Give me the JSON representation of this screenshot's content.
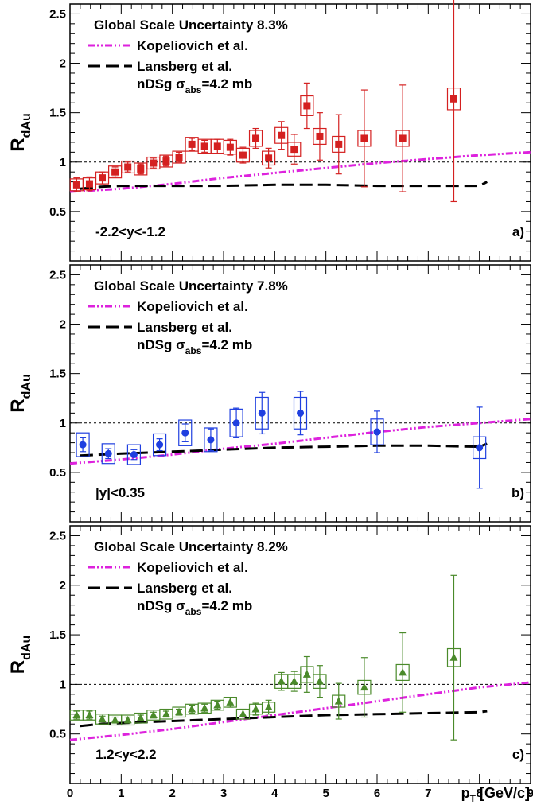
{
  "chart_data": [
    {
      "type": "scatter",
      "panel": "a)",
      "range_label": "-2.2<y<-1.2",
      "global_scale": "Global Scale Uncertainty 8.3%",
      "ylabel": "R",
      "ylabel_sub": "dAu",
      "xlim": [
        0,
        9
      ],
      "ylim": [
        0,
        2.6
      ],
      "yticks": [
        "0.5",
        "1",
        "1.5",
        "2",
        "2.5"
      ],
      "ytick_values": [
        0.5,
        1,
        1.5,
        2,
        2.5
      ],
      "reference_line": 1,
      "legend": {
        "kopeliovich": "Kopeliovich et al.",
        "lansberg": "Lansberg et al.",
        "nds_prefix": "nDSg σ",
        "nds_sub": "abs",
        "nds_suffix": "=4.2 mb"
      },
      "marker": "square",
      "marker_color": "#d42020",
      "data_points": [
        {
          "x": 0.13,
          "y": 0.77,
          "stat": 0.07,
          "sys": 0.06
        },
        {
          "x": 0.38,
          "y": 0.78,
          "stat": 0.07,
          "sys": 0.06
        },
        {
          "x": 0.63,
          "y": 0.84,
          "stat": 0.06,
          "sys": 0.06
        },
        {
          "x": 0.88,
          "y": 0.9,
          "stat": 0.05,
          "sys": 0.06
        },
        {
          "x": 1.13,
          "y": 0.95,
          "stat": 0.05,
          "sys": 0.06
        },
        {
          "x": 1.38,
          "y": 0.93,
          "stat": 0.05,
          "sys": 0.06
        },
        {
          "x": 1.63,
          "y": 0.99,
          "stat": 0.05,
          "sys": 0.06
        },
        {
          "x": 1.88,
          "y": 1.01,
          "stat": 0.05,
          "sys": 0.06
        },
        {
          "x": 2.13,
          "y": 1.05,
          "stat": 0.05,
          "sys": 0.06
        },
        {
          "x": 2.38,
          "y": 1.18,
          "stat": 0.06,
          "sys": 0.07
        },
        {
          "x": 2.63,
          "y": 1.16,
          "stat": 0.06,
          "sys": 0.07
        },
        {
          "x": 2.88,
          "y": 1.16,
          "stat": 0.07,
          "sys": 0.07
        },
        {
          "x": 3.13,
          "y": 1.15,
          "stat": 0.08,
          "sys": 0.07
        },
        {
          "x": 3.38,
          "y": 1.07,
          "stat": 0.08,
          "sys": 0.07
        },
        {
          "x": 3.63,
          "y": 1.24,
          "stat": 0.1,
          "sys": 0.08
        },
        {
          "x": 3.88,
          "y": 1.04,
          "stat": 0.1,
          "sys": 0.07
        },
        {
          "x": 4.13,
          "y": 1.27,
          "stat": 0.14,
          "sys": 0.08
        },
        {
          "x": 4.38,
          "y": 1.13,
          "stat": 0.15,
          "sys": 0.07
        },
        {
          "x": 4.63,
          "y": 1.57,
          "stat": 0.23,
          "sys": 0.1
        },
        {
          "x": 4.88,
          "y": 1.26,
          "stat": 0.24,
          "sys": 0.08
        },
        {
          "x": 5.25,
          "y": 1.18,
          "stat": 0.3,
          "sys": 0.08
        },
        {
          "x": 5.75,
          "y": 1.24,
          "stat": 0.49,
          "sys": 0.08
        },
        {
          "x": 6.5,
          "y": 1.24,
          "stat": 0.54,
          "sys": 0.08
        },
        {
          "x": 7.5,
          "y": 1.64,
          "stat": 1.04,
          "sys": 0.11
        }
      ],
      "kopeliovich_curve": [
        [
          0,
          0.7
        ],
        [
          1,
          0.73
        ],
        [
          2,
          0.78
        ],
        [
          3,
          0.84
        ],
        [
          4,
          0.89
        ],
        [
          5,
          0.94
        ],
        [
          6,
          0.99
        ],
        [
          7,
          1.03
        ],
        [
          8,
          1.07
        ],
        [
          9,
          1.1
        ]
      ],
      "lansberg_curve": [
        [
          0.2,
          0.73
        ],
        [
          0.6,
          0.75
        ],
        [
          1.0,
          0.76
        ],
        [
          2.0,
          0.76
        ],
        [
          3.0,
          0.76
        ],
        [
          4.0,
          0.77
        ],
        [
          5.0,
          0.77
        ],
        [
          6.0,
          0.76
        ],
        [
          7.0,
          0.76
        ],
        [
          8.0,
          0.76
        ],
        [
          8.15,
          0.8
        ]
      ]
    },
    {
      "type": "scatter",
      "panel": "b)",
      "range_label": "|y|<0.35",
      "global_scale": "Global Scale Uncertainty 7.8%",
      "ylabel": "R",
      "ylabel_sub": "dAu",
      "xlim": [
        0,
        9
      ],
      "ylim": [
        0,
        2.6
      ],
      "yticks": [
        "0.5",
        "1",
        "1.5",
        "2",
        "2.5"
      ],
      "ytick_values": [
        0.5,
        1,
        1.5,
        2,
        2.5
      ],
      "reference_line": 1,
      "legend": {
        "kopeliovich": "Kopeliovich et al.",
        "lansberg": "Lansberg et al.",
        "nds_prefix": "nDSg σ",
        "nds_sub": "abs",
        "nds_suffix": "=4.2 mb"
      },
      "marker": "circle",
      "marker_color": "#1f3fe0",
      "data_points": [
        {
          "x": 0.25,
          "y": 0.78,
          "stat": 0.07,
          "sys": 0.12
        },
        {
          "x": 0.75,
          "y": 0.69,
          "stat": 0.05,
          "sys": 0.1
        },
        {
          "x": 1.25,
          "y": 0.68,
          "stat": 0.05,
          "sys": 0.1
        },
        {
          "x": 1.75,
          "y": 0.78,
          "stat": 0.06,
          "sys": 0.11
        },
        {
          "x": 2.25,
          "y": 0.9,
          "stat": 0.09,
          "sys": 0.13
        },
        {
          "x": 2.75,
          "y": 0.83,
          "stat": 0.11,
          "sys": 0.12
        },
        {
          "x": 3.25,
          "y": 1.0,
          "stat": 0.15,
          "sys": 0.14
        },
        {
          "x": 3.75,
          "y": 1.1,
          "stat": 0.21,
          "sys": 0.16
        },
        {
          "x": 4.5,
          "y": 1.1,
          "stat": 0.22,
          "sys": 0.16
        },
        {
          "x": 6.0,
          "y": 0.91,
          "stat": 0.21,
          "sys": 0.13
        },
        {
          "x": 8.0,
          "y": 0.75,
          "stat": 0.41,
          "sys": 0.11
        }
      ],
      "kopeliovich_curve": [
        [
          0,
          0.59
        ],
        [
          1,
          0.63
        ],
        [
          2,
          0.68
        ],
        [
          3,
          0.74
        ],
        [
          4,
          0.79
        ],
        [
          5,
          0.85
        ],
        [
          6,
          0.91
        ],
        [
          7,
          0.96
        ],
        [
          8,
          1.0
        ],
        [
          9,
          1.04
        ]
      ],
      "lansberg_curve": [
        [
          0.2,
          0.67
        ],
        [
          0.6,
          0.68
        ],
        [
          1.0,
          0.69
        ],
        [
          2.0,
          0.71
        ],
        [
          3.0,
          0.73
        ],
        [
          4.0,
          0.75
        ],
        [
          5.0,
          0.76
        ],
        [
          6.0,
          0.77
        ],
        [
          7.0,
          0.77
        ],
        [
          8.0,
          0.76
        ],
        [
          8.15,
          0.79
        ]
      ]
    },
    {
      "type": "scatter",
      "panel": "c)",
      "range_label": "1.2<y<2.2",
      "global_scale": "Global Scale Uncertainty 8.2%",
      "ylabel": "R",
      "ylabel_sub": "dAu",
      "xlim": [
        0,
        9
      ],
      "ylim": [
        0,
        2.6
      ],
      "yticks": [
        "0.5",
        "1",
        "1.5",
        "2",
        "2.5"
      ],
      "ytick_values": [
        0.5,
        1,
        1.5,
        2,
        2.5
      ],
      "xticks": [
        "0",
        "1",
        "2",
        "3",
        "4",
        "5",
        "6",
        "7",
        "8",
        "9"
      ],
      "xtick_values": [
        0,
        1,
        2,
        3,
        4,
        5,
        6,
        7,
        8,
        9
      ],
      "xlabel": "p",
      "xlabel_sub": "T",
      "xlabel_unit": " [GeV/c]",
      "reference_line": 1,
      "legend": {
        "kopeliovich": "Kopeliovich et al.",
        "lansberg": "Lansberg et al.",
        "nds_prefix": "nDSg σ",
        "nds_sub": "abs",
        "nds_suffix": "=4.2 mb"
      },
      "marker": "triangle",
      "marker_color": "#4a8a2a",
      "data_points": [
        {
          "x": 0.13,
          "y": 0.69,
          "stat": 0.04,
          "sys": 0.05
        },
        {
          "x": 0.38,
          "y": 0.69,
          "stat": 0.04,
          "sys": 0.05
        },
        {
          "x": 0.63,
          "y": 0.65,
          "stat": 0.03,
          "sys": 0.05
        },
        {
          "x": 0.88,
          "y": 0.64,
          "stat": 0.03,
          "sys": 0.05
        },
        {
          "x": 1.13,
          "y": 0.64,
          "stat": 0.03,
          "sys": 0.05
        },
        {
          "x": 1.38,
          "y": 0.66,
          "stat": 0.03,
          "sys": 0.05
        },
        {
          "x": 1.63,
          "y": 0.69,
          "stat": 0.03,
          "sys": 0.05
        },
        {
          "x": 1.88,
          "y": 0.7,
          "stat": 0.03,
          "sys": 0.05
        },
        {
          "x": 2.13,
          "y": 0.72,
          "stat": 0.03,
          "sys": 0.05
        },
        {
          "x": 2.38,
          "y": 0.75,
          "stat": 0.04,
          "sys": 0.05
        },
        {
          "x": 2.63,
          "y": 0.76,
          "stat": 0.04,
          "sys": 0.05
        },
        {
          "x": 2.88,
          "y": 0.79,
          "stat": 0.04,
          "sys": 0.05
        },
        {
          "x": 3.13,
          "y": 0.82,
          "stat": 0.05,
          "sys": 0.05
        },
        {
          "x": 3.38,
          "y": 0.7,
          "stat": 0.05,
          "sys": 0.05
        },
        {
          "x": 3.63,
          "y": 0.75,
          "stat": 0.06,
          "sys": 0.05
        },
        {
          "x": 3.88,
          "y": 0.77,
          "stat": 0.07,
          "sys": 0.05
        },
        {
          "x": 4.13,
          "y": 1.03,
          "stat": 0.09,
          "sys": 0.07
        },
        {
          "x": 4.38,
          "y": 1.03,
          "stat": 0.1,
          "sys": 0.07
        },
        {
          "x": 4.63,
          "y": 1.1,
          "stat": 0.18,
          "sys": 0.08
        },
        {
          "x": 4.88,
          "y": 1.03,
          "stat": 0.16,
          "sys": 0.07
        },
        {
          "x": 5.25,
          "y": 0.83,
          "stat": 0.18,
          "sys": 0.06
        },
        {
          "x": 5.75,
          "y": 0.97,
          "stat": 0.3,
          "sys": 0.07
        },
        {
          "x": 6.5,
          "y": 1.12,
          "stat": 0.4,
          "sys": 0.08
        },
        {
          "x": 7.5,
          "y": 1.27,
          "stat": 0.83,
          "sys": 0.09
        }
      ],
      "kopeliovich_curve": [
        [
          0,
          0.44
        ],
        [
          1,
          0.49
        ],
        [
          2,
          0.55
        ],
        [
          3,
          0.62
        ],
        [
          4,
          0.69
        ],
        [
          5,
          0.76
        ],
        [
          6,
          0.83
        ],
        [
          7,
          0.9
        ],
        [
          8,
          0.97
        ],
        [
          9,
          1.02
        ]
      ],
      "lansberg_curve": [
        [
          0.2,
          0.58
        ],
        [
          0.6,
          0.6
        ],
        [
          1.0,
          0.61
        ],
        [
          2.0,
          0.63
        ],
        [
          3.0,
          0.65
        ],
        [
          4.0,
          0.67
        ],
        [
          5.0,
          0.69
        ],
        [
          6.0,
          0.7
        ],
        [
          7.0,
          0.71
        ],
        [
          8.0,
          0.72
        ],
        [
          8.15,
          0.73
        ]
      ]
    }
  ]
}
